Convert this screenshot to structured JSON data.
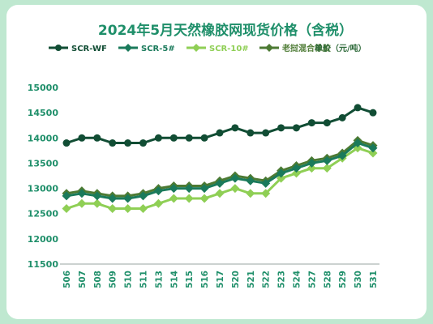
{
  "chart_data": {
    "type": "line",
    "title": "2024年5月天然橡胶网现货价格（含税）",
    "unit_label": "单价（元/吨）",
    "categories": [
      "506",
      "507",
      "508",
      "509",
      "510",
      "511",
      "513",
      "514",
      "515",
      "516",
      "517",
      "520",
      "521",
      "522",
      "523",
      "524",
      "527",
      "528",
      "529",
      "530",
      "531"
    ],
    "ylim": [
      11500,
      15000
    ],
    "yticks": [
      11500,
      12000,
      12500,
      13000,
      13500,
      14000,
      14500,
      15000
    ],
    "grid": false,
    "legend_position": "top",
    "series": [
      {
        "name": "SCR-WF",
        "color": "#114d34",
        "marker": "circle",
        "values": [
          13900,
          14000,
          14000,
          13900,
          13900,
          13900,
          14000,
          14000,
          14000,
          14000,
          14100,
          14200,
          14100,
          14100,
          14200,
          14200,
          14300,
          14300,
          14400,
          14600,
          14500
        ]
      },
      {
        "name": "SCR-5#",
        "color": "#1a7a5b",
        "marker": "diamond",
        "values": [
          12850,
          12900,
          12850,
          12800,
          12800,
          12850,
          12950,
          13000,
          13000,
          13000,
          13100,
          13200,
          13150,
          13100,
          13300,
          13400,
          13500,
          13550,
          13650,
          13900,
          13800
        ]
      },
      {
        "name": "SCR-10#",
        "color": "#8fcf55",
        "marker": "diamond",
        "values": [
          12600,
          12700,
          12700,
          12600,
          12600,
          12600,
          12700,
          12800,
          12800,
          12800,
          12900,
          13000,
          12900,
          12900,
          13200,
          13300,
          13400,
          13400,
          13600,
          13800,
          13700
        ]
      },
      {
        "name": "老挝混合橡胶",
        "color": "#4c7a33",
        "marker": "diamond",
        "values": [
          12900,
          12950,
          12900,
          12850,
          12850,
          12900,
          13000,
          13050,
          13050,
          13050,
          13150,
          13250,
          13200,
          13150,
          13350,
          13450,
          13550,
          13600,
          13700,
          13950,
          13850
        ]
      }
    ]
  }
}
